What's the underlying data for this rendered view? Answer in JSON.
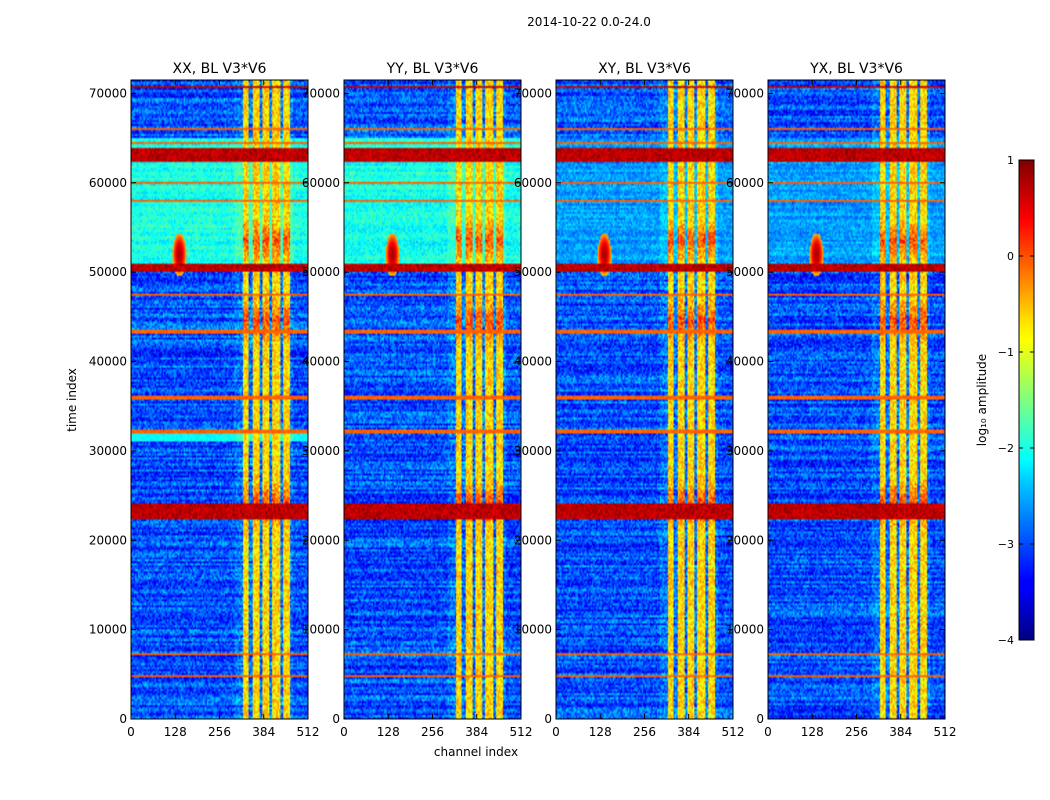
{
  "figure": {
    "suptitle": "2014-10-22 0.0-24.0",
    "ylabel": "time index",
    "xlabel": "channel index"
  },
  "chart_data": {
    "type": "heatmap",
    "x": {
      "label": "channel index",
      "range": [
        0,
        512
      ],
      "ticks": [
        0,
        128,
        256,
        384,
        512
      ]
    },
    "y": {
      "label": "time index",
      "range": [
        0,
        71500
      ],
      "ticks": [
        0,
        10000,
        20000,
        30000,
        40000,
        50000,
        60000,
        70000
      ]
    },
    "panels": [
      {
        "title": "XX, BL V3*V6",
        "pol": "XX"
      },
      {
        "title": "YY, BL V3*V6",
        "pol": "YY"
      },
      {
        "title": "XY, BL V3*V6",
        "pol": "XY"
      },
      {
        "title": "YX, BL V3*V6",
        "pol": "YX"
      }
    ],
    "colorbar": {
      "label": "log₁₀ amplitude",
      "range": [
        -4,
        1
      ],
      "ticks": [
        1,
        0,
        -1,
        -2,
        -3,
        -4
      ],
      "tick_labels": [
        "1",
        "0",
        "−1",
        "−2",
        "−3",
        "−4"
      ],
      "colormap": "jet"
    },
    "features": {
      "background_log_amplitude": -3.0,
      "cyan_block_time_range": [
        50500,
        65000
      ],
      "cyan_block_log_amplitude": -2.0,
      "rfi_band_channels": [
        [
          325,
          338
        ],
        [
          352,
          370
        ],
        [
          382,
          400
        ],
        [
          410,
          432
        ],
        [
          442,
          458
        ]
      ],
      "rfi_band_log_amplitude": -0.7,
      "saturated_time_rows": [
        [
          22300,
          24200
        ],
        [
          50100,
          51000
        ],
        [
          62400,
          63800
        ],
        [
          70500,
          70900
        ]
      ],
      "orange_time_rows": [
        4800,
        7300,
        32200,
        36000,
        43300,
        47500,
        58000,
        60000,
        64500,
        66000
      ],
      "xx_extra_cyan_band": [
        31000,
        32500
      ]
    }
  }
}
